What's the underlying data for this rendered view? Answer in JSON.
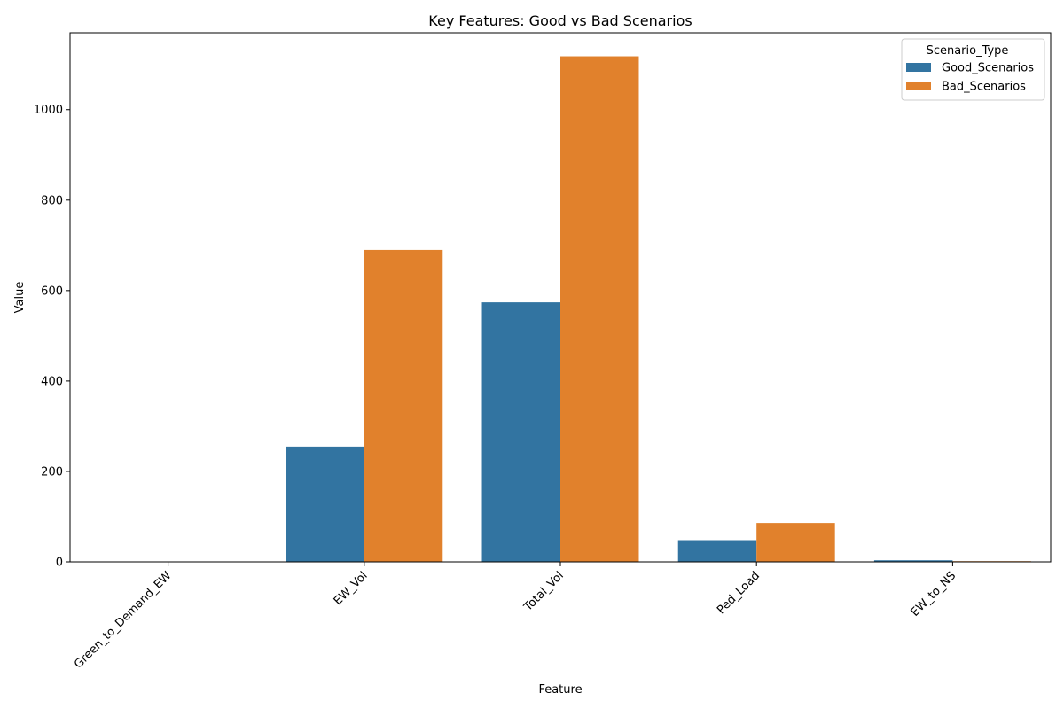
{
  "chart_data": {
    "type": "bar",
    "title": "Key Features: Good vs Bad Scenarios",
    "xlabel": "Feature",
    "ylabel": "Value",
    "categories": [
      "Green_to_Demand_EW",
      "EW_Vol",
      "Total_Vol",
      "Ped_Load",
      "EW_to_NS"
    ],
    "series": [
      {
        "name": "Good_Scenarios",
        "color": "#3274a1",
        "values": [
          0.5,
          255,
          574,
          48,
          3.5
        ]
      },
      {
        "name": "Bad_Scenarios",
        "color": "#e1812c",
        "values": [
          0.3,
          690,
          1118,
          86,
          1.5
        ]
      }
    ],
    "ylim": [
      0,
      1170
    ],
    "yticks": [
      0,
      200,
      400,
      600,
      800,
      1000
    ],
    "legend": {
      "title": "Scenario_Type",
      "placement": "top-right"
    },
    "grid": false
  }
}
